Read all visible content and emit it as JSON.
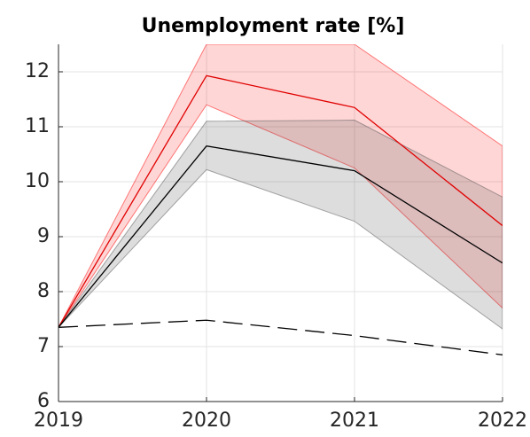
{
  "chart_data": {
    "type": "line",
    "title": "Unemployment rate [%]",
    "x": [
      2019,
      2020,
      2021,
      2022
    ],
    "bands": [
      {
        "color": "#ff0000",
        "upper": [
          7.35,
          12.5,
          12.5,
          10.65
        ],
        "lower": [
          7.35,
          11.4,
          10.25,
          7.7
        ]
      },
      {
        "color": "#555555",
        "upper": [
          7.35,
          11.1,
          11.12,
          9.72
        ],
        "lower": [
          7.35,
          10.22,
          9.28,
          7.32
        ]
      }
    ],
    "series": [
      {
        "color": "#e00000",
        "linestyle": "solid",
        "values": [
          7.35,
          11.93,
          11.35,
          9.2
        ]
      },
      {
        "color": "#000000",
        "linestyle": "solid",
        "values": [
          7.35,
          10.65,
          10.2,
          8.52
        ]
      },
      {
        "color": "#000000",
        "linestyle": "dashed",
        "values": [
          7.35,
          7.48,
          7.2,
          6.85
        ]
      }
    ],
    "xlim": [
      2019,
      2022
    ],
    "xticks": [
      2019,
      2020,
      2021,
      2022
    ],
    "ylim": [
      6,
      12.5
    ],
    "yticks": [
      6,
      7,
      8,
      9,
      10,
      11,
      12
    ],
    "grid": true
  }
}
